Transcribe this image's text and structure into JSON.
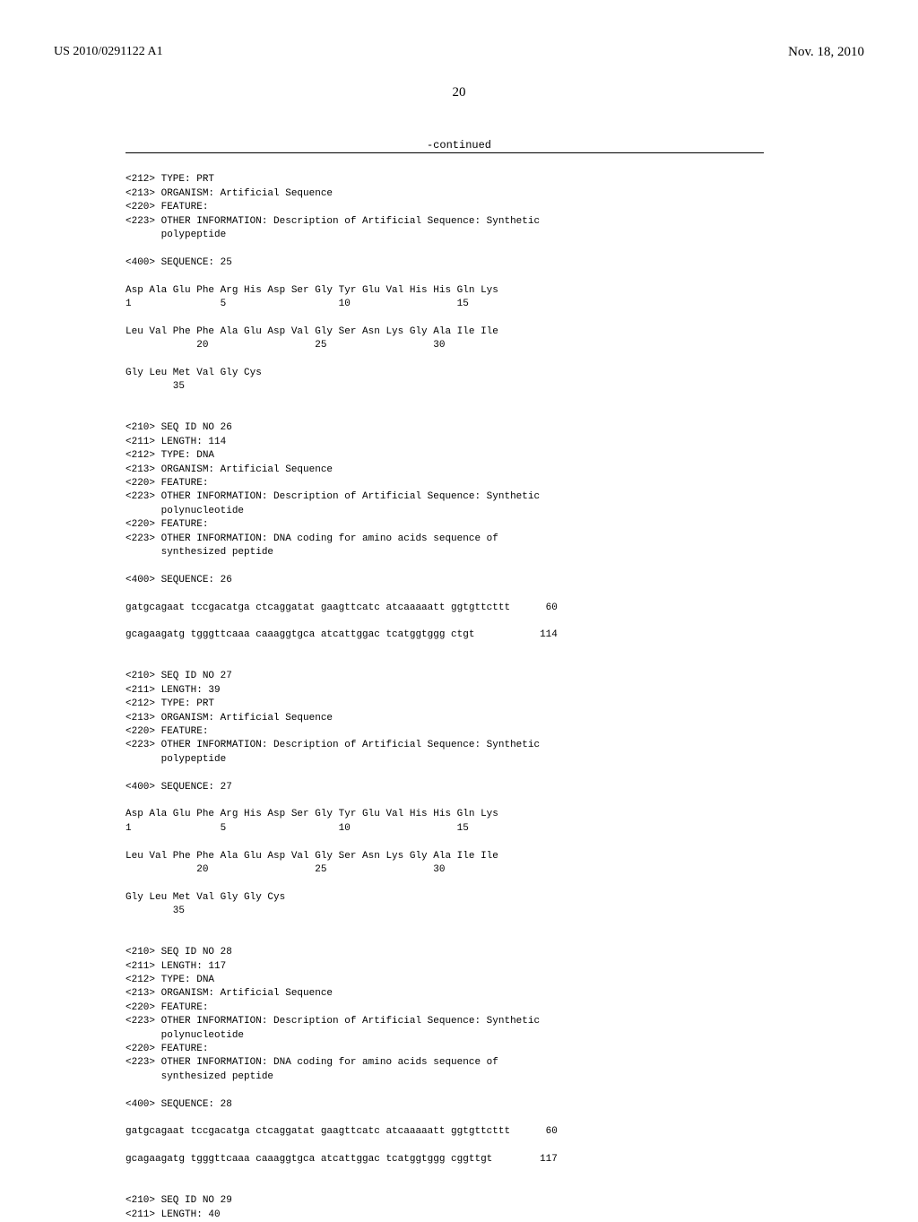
{
  "header": {
    "pub_number": "US 2010/0291122 A1",
    "pub_date": "Nov. 18, 2010",
    "page_num": "20",
    "continued_label": "-continued"
  },
  "seq25": {
    "type": "<212> TYPE: PRT",
    "organism": "<213> ORGANISM: Artificial Sequence",
    "feature": "<220> FEATURE:",
    "other_info_1": "<223> OTHER INFORMATION: Description of Artificial Sequence: Synthetic",
    "other_info_2": "      polypeptide",
    "seq_label": "<400> SEQUENCE: 25",
    "line1": "Asp Ala Glu Phe Arg His Asp Ser Gly Tyr Glu Val His His Gln Lys",
    "line1_nums": "1               5                   10                  15",
    "line2": "Leu Val Phe Phe Ala Glu Asp Val Gly Ser Asn Lys Gly Ala Ile Ile",
    "line2_nums": "            20                  25                  30",
    "line3": "Gly Leu Met Val Gly Cys",
    "line3_nums": "        35"
  },
  "seq26": {
    "id": "<210> SEQ ID NO 26",
    "length": "<211> LENGTH: 114",
    "type": "<212> TYPE: DNA",
    "organism": "<213> ORGANISM: Artificial Sequence",
    "feature1": "<220> FEATURE:",
    "other_info_1": "<223> OTHER INFORMATION: Description of Artificial Sequence: Synthetic",
    "other_info_2": "      polynucleotide",
    "feature2": "<220> FEATURE:",
    "other_info_3": "<223> OTHER INFORMATION: DNA coding for amino acids sequence of",
    "other_info_4": "      synthesized peptide",
    "seq_label": "<400> SEQUENCE: 26",
    "dna1": "gatgcagaat tccgacatga ctcaggatat gaagttcatc atcaaaaatt ggtgttcttt      60",
    "dna2": "gcagaagatg tgggttcaaa caaaggtgca atcattggac tcatggtggg ctgt           114"
  },
  "seq27": {
    "id": "<210> SEQ ID NO 27",
    "length": "<211> LENGTH: 39",
    "type": "<212> TYPE: PRT",
    "organism": "<213> ORGANISM: Artificial Sequence",
    "feature": "<220> FEATURE:",
    "other_info_1": "<223> OTHER INFORMATION: Description of Artificial Sequence: Synthetic",
    "other_info_2": "      polypeptide",
    "seq_label": "<400> SEQUENCE: 27",
    "line1": "Asp Ala Glu Phe Arg His Asp Ser Gly Tyr Glu Val His His Gln Lys",
    "line1_nums": "1               5                   10                  15",
    "line2": "Leu Val Phe Phe Ala Glu Asp Val Gly Ser Asn Lys Gly Ala Ile Ile",
    "line2_nums": "            20                  25                  30",
    "line3": "Gly Leu Met Val Gly Gly Cys",
    "line3_nums": "        35"
  },
  "seq28": {
    "id": "<210> SEQ ID NO 28",
    "length": "<211> LENGTH: 117",
    "type": "<212> TYPE: DNA",
    "organism": "<213> ORGANISM: Artificial Sequence",
    "feature1": "<220> FEATURE:",
    "other_info_1": "<223> OTHER INFORMATION: Description of Artificial Sequence: Synthetic",
    "other_info_2": "      polynucleotide",
    "feature2": "<220> FEATURE:",
    "other_info_3": "<223> OTHER INFORMATION: DNA coding for amino acids sequence of",
    "other_info_4": "      synthesized peptide",
    "seq_label": "<400> SEQUENCE: 28",
    "dna1": "gatgcagaat tccgacatga ctcaggatat gaagttcatc atcaaaaatt ggtgttcttt      60",
    "dna2": "gcagaagatg tgggttcaaa caaaggtgca atcattggac tcatggtggg cggttgt        117"
  },
  "seq29": {
    "id": "<210> SEQ ID NO 29",
    "length": "<211> LENGTH: 40"
  }
}
